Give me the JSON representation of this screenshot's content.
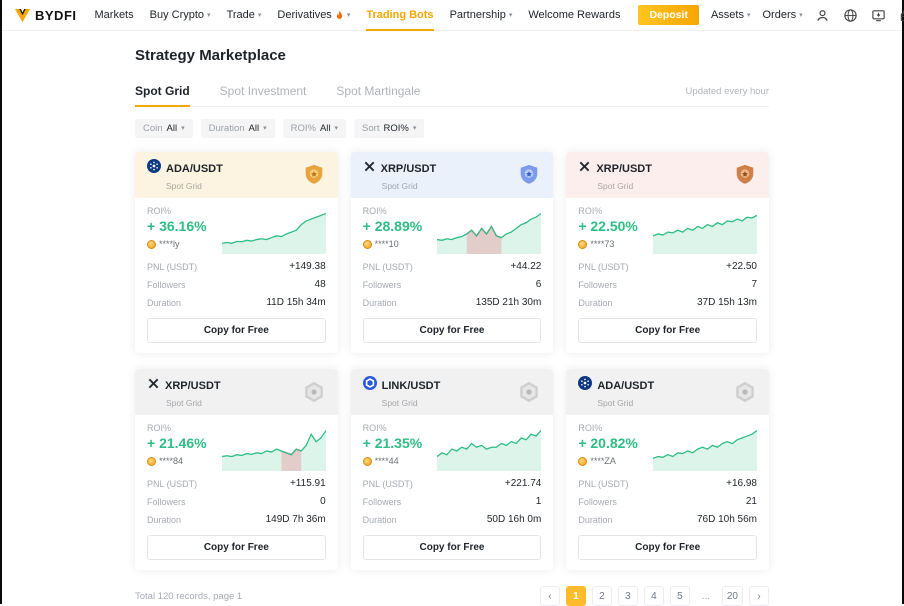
{
  "colors": {
    "brand_yellow": "#f7a600",
    "green": "#2ebd85",
    "red": "#f6465d"
  },
  "header": {
    "logo_text": "BYDFI",
    "nav": [
      {
        "label": "Markets"
      },
      {
        "label": "Buy Crypto"
      },
      {
        "label": "Trade"
      },
      {
        "label": "Derivatives"
      },
      {
        "label": "Trading Bots"
      },
      {
        "label": "Partnership"
      },
      {
        "label": "Welcome Rewards"
      }
    ],
    "deposit_label": "Deposit",
    "assets_label": "Assets",
    "orders_label": "Orders"
  },
  "page": {
    "title": "Strategy Marketplace",
    "tabs": [
      {
        "label": "Spot Grid"
      },
      {
        "label": "Spot Investment"
      },
      {
        "label": "Spot Martingale"
      }
    ],
    "updated_note": "Updated every hour"
  },
  "filters": [
    {
      "label": "Coin",
      "value": "All"
    },
    {
      "label": "Duration",
      "value": "All"
    },
    {
      "label": "ROI%",
      "value": "All"
    },
    {
      "label": "Sort",
      "value": "ROI%"
    }
  ],
  "labels": {
    "roi": "ROI%",
    "pnl": "PNL (USDT)",
    "followers": "Followers",
    "duration": "Duration",
    "copy": "Copy for Free",
    "spot_grid": "Spot Grid"
  },
  "cards": [
    {
      "pair": "ADA/USDT",
      "coin": "ADA",
      "rank": "gold",
      "header_bg": "#fcf3e0",
      "roi": "+ 36.16%",
      "user": "****ly",
      "pnl": "+149.38",
      "followers": "48",
      "duration": "11D 15h 34m",
      "spark": [
        0.2,
        0.22,
        0.2,
        0.25,
        0.24,
        0.28,
        0.26,
        0.3,
        0.32,
        0.3,
        0.35,
        0.4,
        0.38,
        0.45,
        0.5,
        0.55,
        0.7,
        0.8,
        0.85,
        0.9,
        0.95,
        1.0
      ],
      "spark_neg": null
    },
    {
      "pair": "XRP/USDT",
      "coin": "XRP",
      "rank": "blue",
      "header_bg": "#eaf1fa",
      "roi": "+ 28.89%",
      "user": "****10",
      "pnl": "+44.22",
      "followers": "6",
      "duration": "135D 21h 30m",
      "spark": [
        0.3,
        0.28,
        0.32,
        0.3,
        0.35,
        0.38,
        0.45,
        0.55,
        0.4,
        0.6,
        0.45,
        0.65,
        0.4,
        0.35,
        0.45,
        0.5,
        0.6,
        0.7,
        0.75,
        0.85,
        0.9,
        1.0
      ],
      "spark_neg": [
        6,
        13
      ]
    },
    {
      "pair": "XRP/USDT",
      "coin": "XRP",
      "rank": "bronze",
      "header_bg": "#fdeeee",
      "roi": "+ 22.50%",
      "user": "****73",
      "pnl": "+22.50",
      "followers": "7",
      "duration": "37D 15h 13m",
      "spark": [
        0.4,
        0.45,
        0.42,
        0.5,
        0.48,
        0.55,
        0.5,
        0.6,
        0.55,
        0.65,
        0.6,
        0.7,
        0.65,
        0.75,
        0.7,
        0.8,
        0.78,
        0.85,
        0.8,
        0.9,
        0.88,
        0.95
      ],
      "spark_neg": null
    },
    {
      "pair": "XRP/USDT",
      "coin": "XRP",
      "rank": "gray",
      "header_bg": "#f1f1f1",
      "roi": "+ 21.46%",
      "user": "****84",
      "pnl": "+115.91",
      "followers": "0",
      "duration": "149D 7h 36m",
      "spark": [
        0.3,
        0.32,
        0.3,
        0.35,
        0.33,
        0.38,
        0.36,
        0.4,
        0.38,
        0.45,
        0.42,
        0.5,
        0.45,
        0.4,
        0.35,
        0.5,
        0.45,
        0.6,
        0.9,
        0.7,
        0.8,
        1.0
      ],
      "spark_neg": [
        12,
        16
      ]
    },
    {
      "pair": "LINK/USDT",
      "coin": "LINK",
      "rank": "gray",
      "header_bg": "#f1f1f1",
      "roi": "+ 21.35%",
      "user": "****44",
      "pnl": "+221.74",
      "followers": "1",
      "duration": "50D 16h 0m",
      "spark": [
        0.3,
        0.4,
        0.35,
        0.5,
        0.45,
        0.55,
        0.5,
        0.65,
        0.55,
        0.6,
        0.5,
        0.55,
        0.55,
        0.65,
        0.6,
        0.7,
        0.65,
        0.8,
        0.75,
        0.9,
        0.85,
        1.0
      ],
      "spark_neg": null
    },
    {
      "pair": "ADA/USDT",
      "coin": "ADA",
      "rank": "gray",
      "header_bg": "#f1f1f1",
      "roi": "+ 20.82%",
      "user": "****ZA",
      "pnl": "+16.98",
      "followers": "21",
      "duration": "76D 10h 56m",
      "spark": [
        0.25,
        0.3,
        0.28,
        0.35,
        0.3,
        0.4,
        0.38,
        0.45,
        0.4,
        0.5,
        0.55,
        0.5,
        0.6,
        0.55,
        0.65,
        0.7,
        0.65,
        0.75,
        0.8,
        0.85,
        0.9,
        1.0
      ],
      "spark_neg": null
    }
  ],
  "pagination": {
    "summary": "Total 120 records, page 1",
    "prev": "‹",
    "next": "›",
    "pages": [
      "1",
      "2",
      "3",
      "4",
      "5",
      "...",
      "20"
    ],
    "active_page": "1"
  }
}
